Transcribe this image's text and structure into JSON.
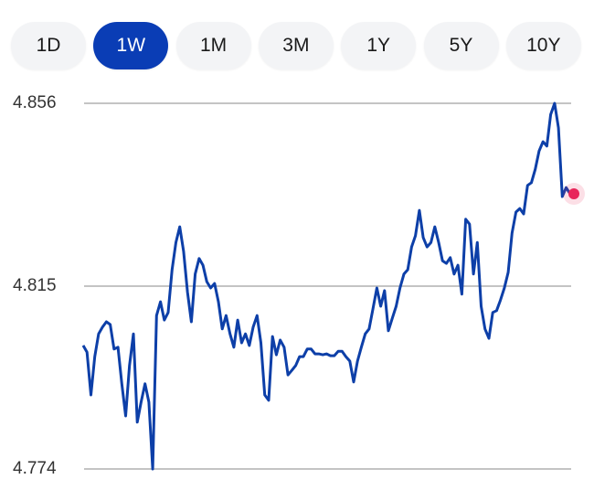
{
  "tabs": {
    "labels": [
      "1D",
      "1W",
      "1M",
      "3M",
      "1Y",
      "5Y",
      "10Y"
    ],
    "active": 1
  },
  "chart_data": {
    "type": "line",
    "color": "#0d3fa8",
    "marker_color": "#e8265a",
    "ylim": [
      4.774,
      4.856
    ],
    "yticks": [
      4.856,
      4.815,
      4.774
    ],
    "grid": true,
    "values": [
      4.8017,
      4.8002,
      4.7906,
      4.7992,
      4.8043,
      4.8058,
      4.807,
      4.8064,
      4.8009,
      4.8013,
      4.7931,
      4.7859,
      4.7972,
      4.8043,
      4.7845,
      4.789,
      4.7931,
      4.789,
      4.774,
      4.8084,
      4.8115,
      4.8074,
      4.8091,
      4.8187,
      4.8248,
      4.8283,
      4.8228,
      4.8136,
      4.807,
      4.8177,
      4.8212,
      4.8197,
      4.816,
      4.8146,
      4.8156,
      4.8115,
      4.8054,
      4.8084,
      4.8043,
      4.8013,
      4.8074,
      4.8023,
      4.8043,
      4.8017,
      4.8058,
      4.8084,
      4.8023,
      4.7906,
      4.7894,
      4.8037,
      4.7996,
      4.8029,
      4.8013,
      4.7951,
      4.7961,
      4.7972,
      4.7992,
      4.7992,
      4.8009,
      4.8009,
      4.7998,
      4.7998,
      4.7996,
      4.7998,
      4.7994,
      4.7994,
      4.8004,
      4.8004,
      4.7992,
      4.7982,
      4.7935,
      4.7982,
      4.8013,
      4.8043,
      4.8054,
      4.8099,
      4.8146,
      4.8105,
      4.814,
      4.805,
      4.8078,
      4.8105,
      4.8146,
      4.8177,
      4.8187,
      4.8238,
      4.8263,
      4.832,
      4.8259,
      4.8238,
      4.8248,
      4.8283,
      4.8248,
      4.8207,
      4.8201,
      4.8214,
      4.8177,
      4.8197,
      4.8132,
      4.83,
      4.8289,
      4.8177,
      4.8248,
      4.8105,
      4.8054,
      4.8033,
      4.8091,
      4.8095,
      4.8119,
      4.8146,
      4.8181,
      4.8269,
      4.8316,
      4.8324,
      4.8312,
      4.8376,
      4.8382,
      4.8412,
      4.8453,
      4.8474,
      4.8464,
      4.8535,
      4.856,
      4.8505,
      4.8351,
      4.8371,
      4.8357,
      4.8357
    ]
  }
}
